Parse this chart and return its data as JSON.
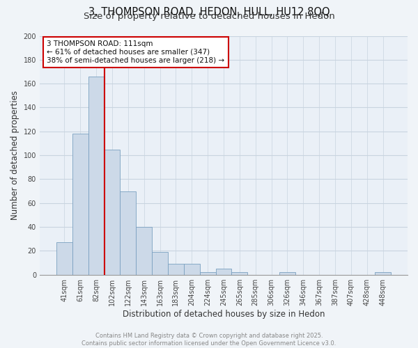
{
  "title": "3, THOMPSON ROAD, HEDON, HULL, HU12 8QQ",
  "subtitle": "Size of property relative to detached houses in Hedon",
  "xlabel": "Distribution of detached houses by size in Hedon",
  "ylabel": "Number of detached properties",
  "bar_color": "#ccd9e8",
  "bar_edge_color": "#7aa0c0",
  "background_color": "#f0f4f8",
  "plot_bg_color": "#eaf0f7",
  "grid_color": "#c8d4e0",
  "categories": [
    "41sqm",
    "61sqm",
    "82sqm",
    "102sqm",
    "122sqm",
    "143sqm",
    "163sqm",
    "183sqm",
    "204sqm",
    "224sqm",
    "245sqm",
    "265sqm",
    "285sqm",
    "306sqm",
    "326sqm",
    "346sqm",
    "367sqm",
    "387sqm",
    "407sqm",
    "428sqm",
    "448sqm"
  ],
  "values": [
    27,
    118,
    166,
    105,
    70,
    40,
    19,
    9,
    9,
    2,
    5,
    2,
    0,
    0,
    2,
    0,
    0,
    0,
    0,
    0,
    2
  ],
  "ylim": [
    0,
    200
  ],
  "yticks": [
    0,
    20,
    40,
    60,
    80,
    100,
    120,
    140,
    160,
    180,
    200
  ],
  "vline_color": "#cc0000",
  "vline_bar_index": 2,
  "annotation_text": "3 THOMPSON ROAD: 111sqm\n← 61% of detached houses are smaller (347)\n38% of semi-detached houses are larger (218) →",
  "annotation_box_color": "#ffffff",
  "annotation_box_edge": "#cc0000",
  "footer_line1": "Contains HM Land Registry data © Crown copyright and database right 2025.",
  "footer_line2": "Contains public sector information licensed under the Open Government Licence v3.0.",
  "title_fontsize": 10.5,
  "subtitle_fontsize": 9.5,
  "label_fontsize": 8.5,
  "tick_fontsize": 7,
  "annotation_fontsize": 7.5,
  "footer_fontsize": 6
}
